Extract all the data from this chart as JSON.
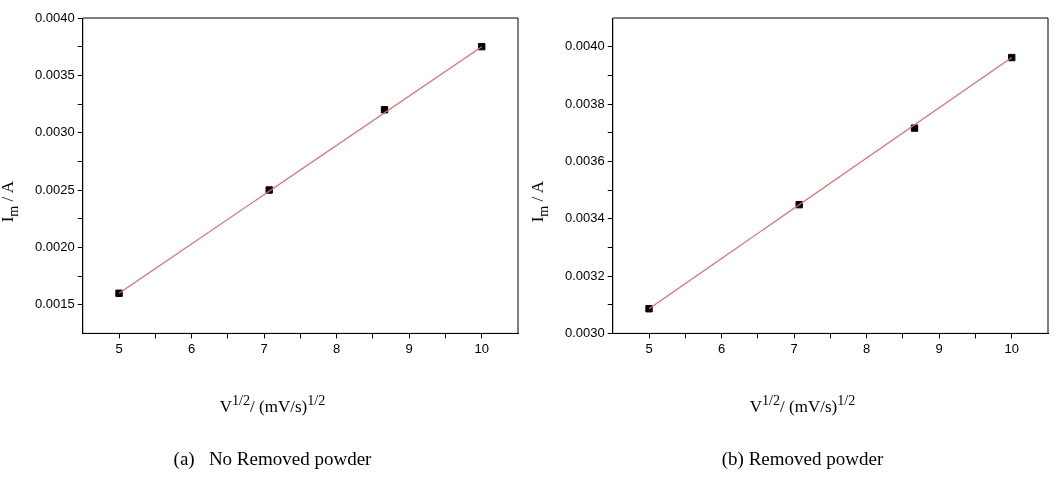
{
  "chart_data": [
    {
      "type": "scatter",
      "xlabel": "V$^{1/2}$/ (mV/s)$^{1/2}$",
      "ylabel": "I$_{m}$ / A",
      "annotations": [
        "(a)   No Removed powder"
      ],
      "xlim": [
        4.5,
        10.5
      ],
      "xticks": [
        5,
        {
          "value": 5.5,
          "label": null
        },
        6,
        {
          "value": 6.5,
          "label": null
        },
        7,
        {
          "value": 7.5,
          "label": null
        },
        8,
        {
          "value": 8.5,
          "label": null
        },
        9,
        {
          "value": 9.5,
          "label": null
        },
        10
      ],
      "ylim": [
        0.00125,
        0.004
      ],
      "yticks": [
        {
          "value": 0.0015,
          "label": "0.0015"
        },
        {
          "value": 0.00175,
          "label": null
        },
        {
          "value": 0.002,
          "label": "0.0020"
        },
        {
          "value": 0.00225,
          "label": null
        },
        {
          "value": 0.0025,
          "label": "0.0025"
        },
        {
          "value": 0.00275,
          "label": null
        },
        {
          "value": 0.003,
          "label": "0.0030"
        },
        {
          "value": 0.00325,
          "label": null
        },
        {
          "value": 0.0035,
          "label": "0.0035"
        },
        {
          "value": 0.00375,
          "label": null
        },
        {
          "value": 0.004,
          "label": "0.0040"
        }
      ],
      "series": [
        {
          "type": "scatter",
          "color": "#000000",
          "marker": "square",
          "x": [
            5,
            7.07,
            8.66,
            10
          ],
          "values": [
            0.0016,
            0.0025,
            0.0032,
            0.00375
          ]
        },
        {
          "type": "line",
          "color": "#e8676b",
          "marker": "none",
          "x": [
            5,
            10
          ],
          "values": [
            0.0016,
            0.00375
          ]
        }
      ]
    },
    {
      "type": "scatter",
      "xlabel": "V$^{1/2}$/ (mV/s)$^{1/2}$",
      "ylabel": "I$_{m}$ / A",
      "annotations": [
        "(b) Removed powder"
      ],
      "xlim": [
        4.5,
        10.5
      ],
      "xticks": [
        5,
        {
          "value": 5.5,
          "label": null
        },
        6,
        {
          "value": 6.5,
          "label": null
        },
        7,
        {
          "value": 7.5,
          "label": null
        },
        8,
        {
          "value": 8.5,
          "label": null
        },
        9,
        {
          "value": 9.5,
          "label": null
        },
        10
      ],
      "ylim": [
        0.003,
        0.0041
      ],
      "yticks": [
        {
          "value": 0.003,
          "label": "0.0030"
        },
        {
          "value": 0.0031,
          "label": null
        },
        {
          "value": 0.0032,
          "label": "0.0032"
        },
        {
          "value": 0.0033,
          "label": null
        },
        {
          "value": 0.0034,
          "label": "0.0034"
        },
        {
          "value": 0.0035,
          "label": null
        },
        {
          "value": 0.0036,
          "label": "0.0036"
        },
        {
          "value": 0.0037,
          "label": null
        },
        {
          "value": 0.0038,
          "label": "0.0038"
        },
        {
          "value": 0.0039,
          "label": null
        },
        {
          "value": 0.004,
          "label": "0.0040"
        }
      ],
      "series": [
        {
          "type": "scatter",
          "color": "#000000",
          "marker": "square",
          "x": [
            5,
            7.07,
            8.66,
            10
          ],
          "values": [
            0.003086,
            0.003449,
            0.003716,
            0.003962
          ]
        },
        {
          "type": "line",
          "color": "#e8676b",
          "marker": "none",
          "x": [
            5,
            10
          ],
          "values": [
            0.003086,
            0.003962
          ]
        }
      ]
    }
  ]
}
